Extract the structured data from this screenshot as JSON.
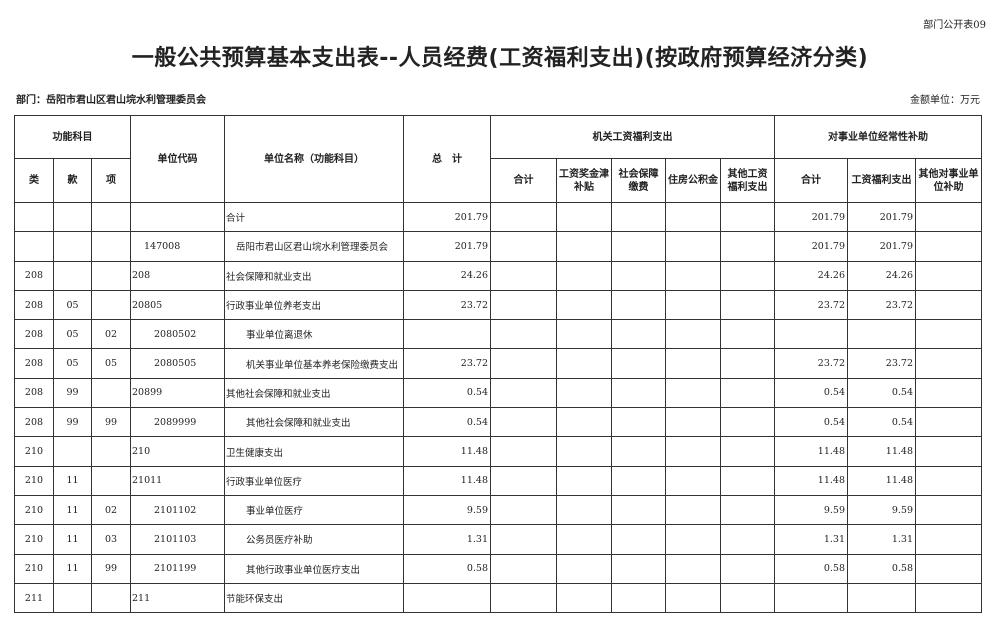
{
  "form_number": "部门公开表09",
  "title": "一般公共预算基本支出表--人员经费(工资福利支出)(按政府预算经济分类)",
  "department": "部门：岳阳市君山区君山垸水利管理委员会",
  "unit": "金额单位：万元",
  "headers": {
    "func_subject": "功能科目",
    "lei": "类",
    "kuan": "款",
    "xiang": "项",
    "unit_code": "单位代码",
    "unit_name": "单位名称（功能科目）",
    "total": "总　计",
    "gov_group": "机关工资福利支出",
    "gov_cols": [
      "合计",
      "工资奖金津补贴",
      "社会保障缴费",
      "住房公积金",
      "其他工资福利支出"
    ],
    "inst_group": "对事业单位经常性补助",
    "inst_cols": [
      "合计",
      "工资福利支出",
      "其他对事业单位补助"
    ]
  },
  "rows": [
    {
      "lei": "",
      "kuan": "",
      "xiang": "",
      "code": "",
      "name": "合计",
      "total": "201.79",
      "gov": [
        "",
        "",
        "",
        "",
        ""
      ],
      "inst": [
        "201.79",
        "201.79",
        ""
      ],
      "indent": 0
    },
    {
      "lei": "",
      "kuan": "",
      "xiang": "",
      "code": "147008",
      "name": "岳阳市君山区君山垸水利管理委员会",
      "total": "201.79",
      "gov": [
        "",
        "",
        "",
        "",
        ""
      ],
      "inst": [
        "201.79",
        "201.79",
        ""
      ],
      "indent": 1
    },
    {
      "lei": "208",
      "kuan": "",
      "xiang": "",
      "code": "208",
      "name": "社会保障和就业支出",
      "total": "24.26",
      "gov": [
        "",
        "",
        "",
        "",
        ""
      ],
      "inst": [
        "24.26",
        "24.26",
        ""
      ],
      "indent": 0
    },
    {
      "lei": "208",
      "kuan": "05",
      "xiang": "",
      "code": "20805",
      "name": "行政事业单位养老支出",
      "total": "23.72",
      "gov": [
        "",
        "",
        "",
        "",
        ""
      ],
      "inst": [
        "23.72",
        "23.72",
        ""
      ],
      "indent": 0
    },
    {
      "lei": "208",
      "kuan": "05",
      "xiang": "02",
      "code": "2080502",
      "name": "事业单位离退休",
      "total": "",
      "gov": [
        "",
        "",
        "",
        "",
        ""
      ],
      "inst": [
        "",
        "",
        ""
      ],
      "indent": 2
    },
    {
      "lei": "208",
      "kuan": "05",
      "xiang": "05",
      "code": "2080505",
      "name": "机关事业单位基本养老保险缴费支出",
      "total": "23.72",
      "gov": [
        "",
        "",
        "",
        "",
        ""
      ],
      "inst": [
        "23.72",
        "23.72",
        ""
      ],
      "indent": 2
    },
    {
      "lei": "208",
      "kuan": "99",
      "xiang": "",
      "code": "20899",
      "name": "其他社会保障和就业支出",
      "total": "0.54",
      "gov": [
        "",
        "",
        "",
        "",
        ""
      ],
      "inst": [
        "0.54",
        "0.54",
        ""
      ],
      "indent": 0
    },
    {
      "lei": "208",
      "kuan": "99",
      "xiang": "99",
      "code": "2089999",
      "name": "其他社会保障和就业支出",
      "total": "0.54",
      "gov": [
        "",
        "",
        "",
        "",
        ""
      ],
      "inst": [
        "0.54",
        "0.54",
        ""
      ],
      "indent": 2
    },
    {
      "lei": "210",
      "kuan": "",
      "xiang": "",
      "code": "210",
      "name": "卫生健康支出",
      "total": "11.48",
      "gov": [
        "",
        "",
        "",
        "",
        ""
      ],
      "inst": [
        "11.48",
        "11.48",
        ""
      ],
      "indent": 0
    },
    {
      "lei": "210",
      "kuan": "11",
      "xiang": "",
      "code": "21011",
      "name": "行政事业单位医疗",
      "total": "11.48",
      "gov": [
        "",
        "",
        "",
        "",
        ""
      ],
      "inst": [
        "11.48",
        "11.48",
        ""
      ],
      "indent": 0
    },
    {
      "lei": "210",
      "kuan": "11",
      "xiang": "02",
      "code": "2101102",
      "name": "事业单位医疗",
      "total": "9.59",
      "gov": [
        "",
        "",
        "",
        "",
        ""
      ],
      "inst": [
        "9.59",
        "9.59",
        ""
      ],
      "indent": 2
    },
    {
      "lei": "210",
      "kuan": "11",
      "xiang": "03",
      "code": "2101103",
      "name": "公务员医疗补助",
      "total": "1.31",
      "gov": [
        "",
        "",
        "",
        "",
        ""
      ],
      "inst": [
        "1.31",
        "1.31",
        ""
      ],
      "indent": 2
    },
    {
      "lei": "210",
      "kuan": "11",
      "xiang": "99",
      "code": "2101199",
      "name": "其他行政事业单位医疗支出",
      "total": "0.58",
      "gov": [
        "",
        "",
        "",
        "",
        ""
      ],
      "inst": [
        "0.58",
        "0.58",
        ""
      ],
      "indent": 2
    },
    {
      "lei": "211",
      "kuan": "",
      "xiang": "",
      "code": "211",
      "name": "节能环保支出",
      "total": "",
      "gov": [
        "",
        "",
        "",
        "",
        ""
      ],
      "inst": [
        "",
        "",
        ""
      ],
      "indent": 0
    }
  ]
}
